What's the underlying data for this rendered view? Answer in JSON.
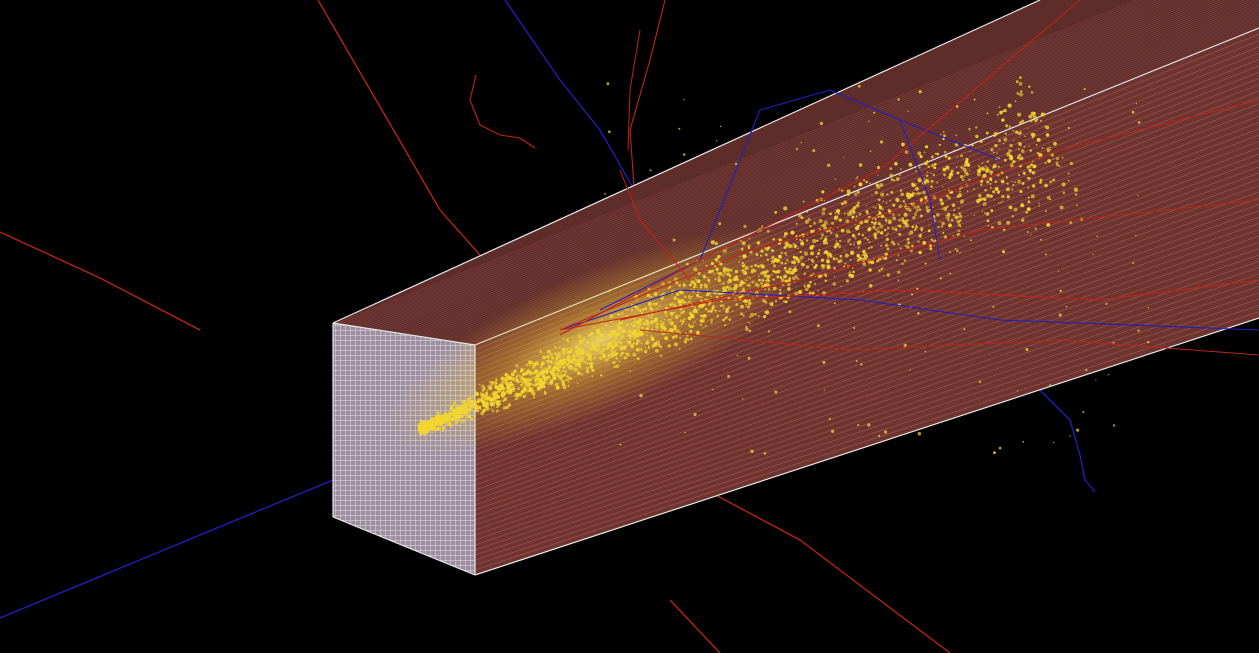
{
  "scene": {
    "background_color": "#000000",
    "detector": {
      "side_fill_color": "#6e3530",
      "top_fill_color": "#5e2c29",
      "front_fill_color": "#b9a6b8",
      "layer_line_color": "#d7786f",
      "edge_color": "#e8e8e8"
    },
    "tracks": {
      "positive_color": "#c02418",
      "negative_color": "#2020c0"
    },
    "energy_deposit_color": "#f2d530"
  }
}
